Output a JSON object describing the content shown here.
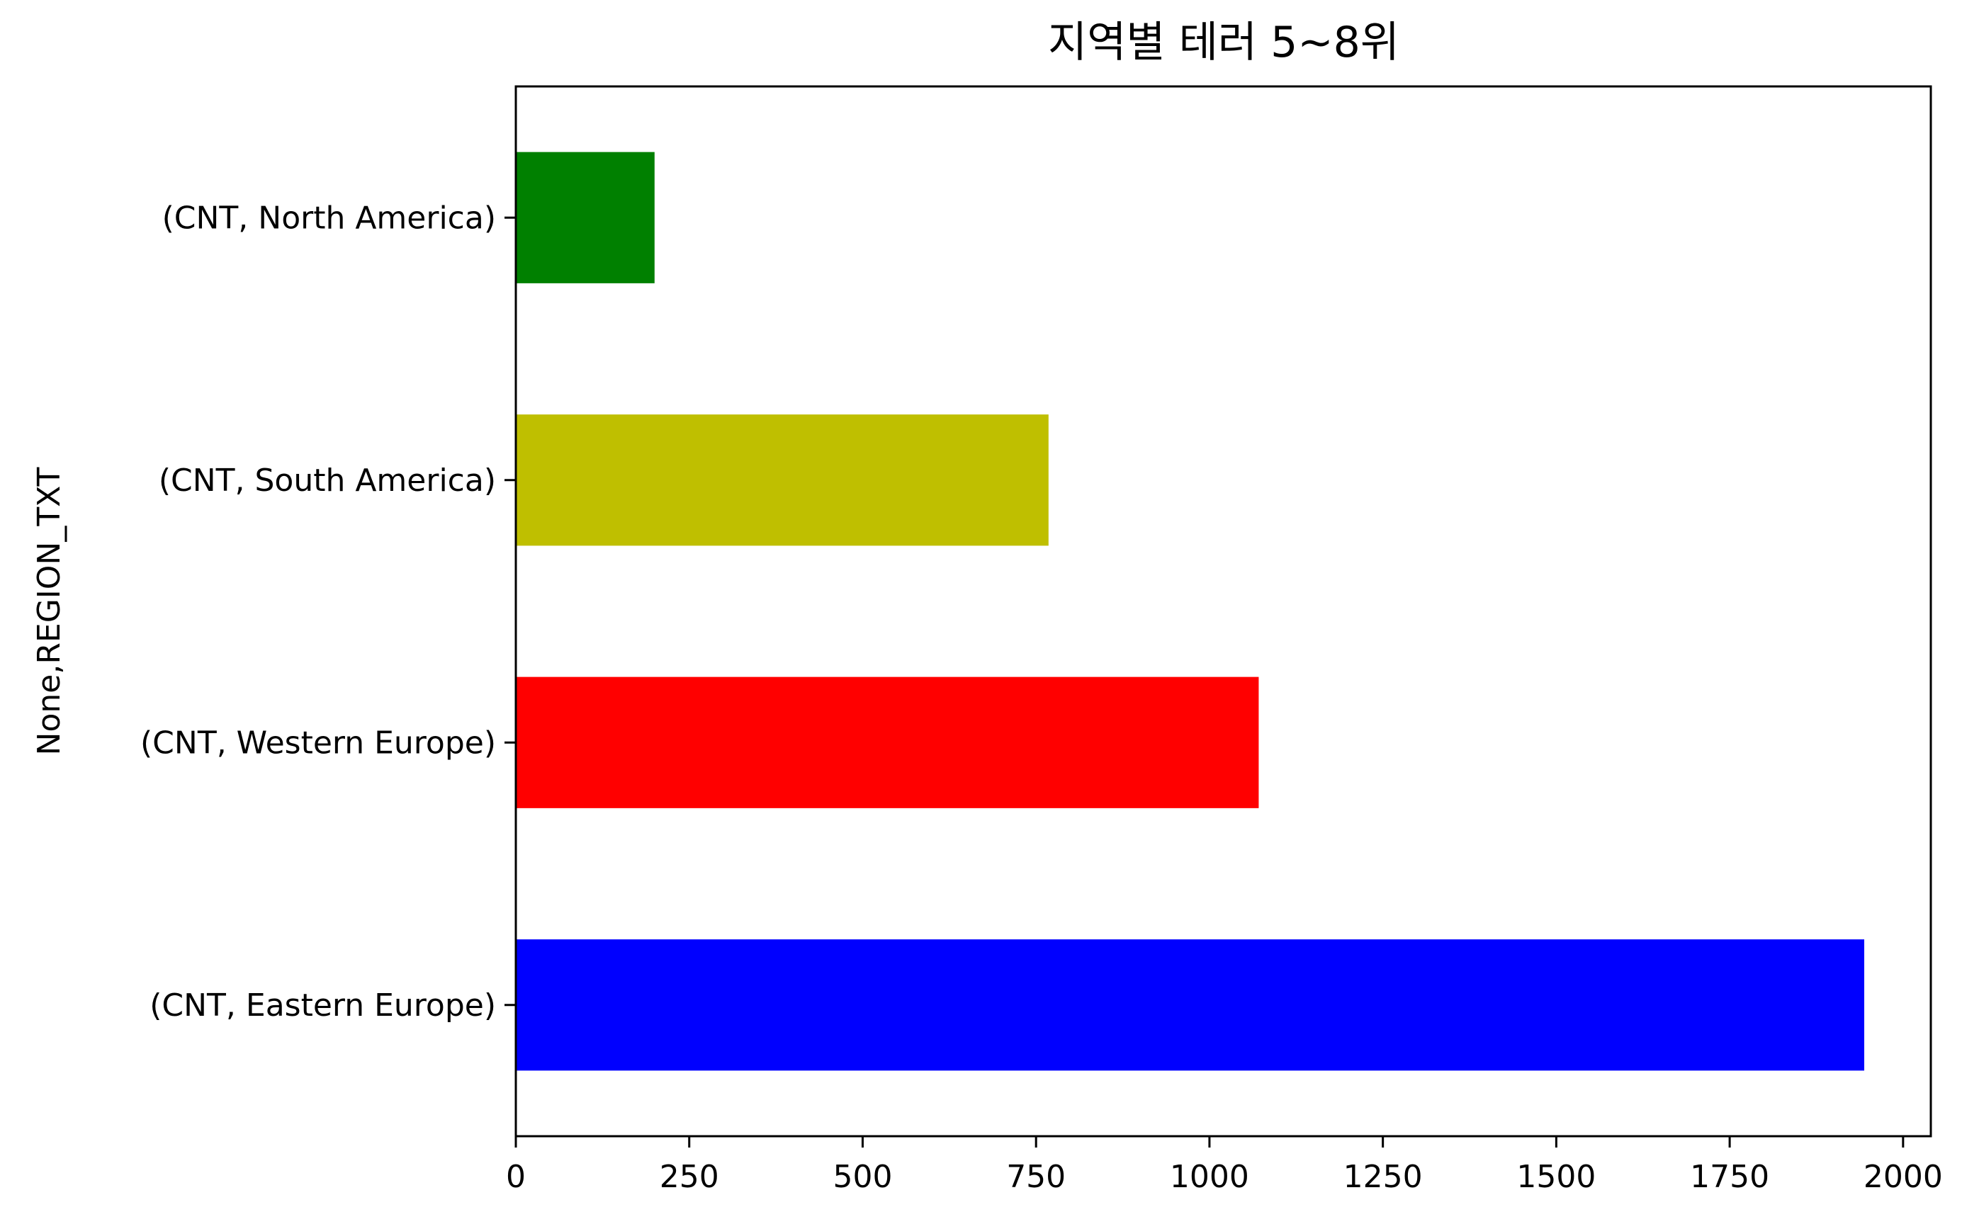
{
  "chart_data": {
    "type": "bar",
    "orientation": "horizontal",
    "title": "지역별 테러 5~8위",
    "xlabel": "",
    "ylabel": "None,REGION_TXT",
    "categories": [
      "(CNT, North America)",
      "(CNT, South America)",
      "(CNT, Western Europe)",
      "(CNT, Eastern Europe)"
    ],
    "values": [
      200,
      768,
      1071,
      1944
    ],
    "colors": [
      "#008000",
      "#bfbf00",
      "#ff0000",
      "#0000ff"
    ],
    "xlim": [
      0,
      2040
    ],
    "xticks": [
      0,
      250,
      500,
      750,
      1000,
      1250,
      1500,
      1750,
      2000
    ],
    "grid": false,
    "legend": "none"
  }
}
